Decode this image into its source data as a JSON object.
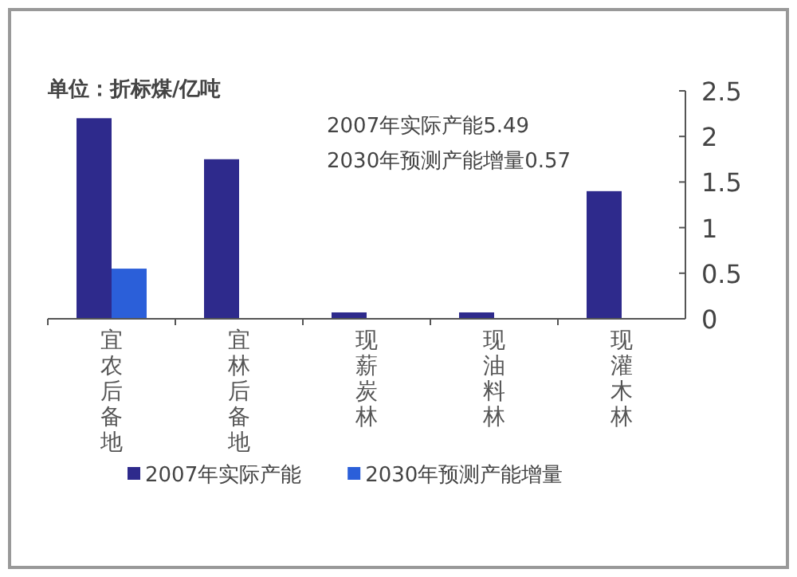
{
  "chart_data": {
    "type": "bar",
    "categories": [
      "宜农后备地",
      "宜林后备地",
      "现薪炭林",
      "现油料林",
      "现灌木林"
    ],
    "series": [
      {
        "name": "2007年实际产能",
        "color": "#2e2a8c",
        "values": [
          2.2,
          1.75,
          0.07,
          0.07,
          1.4
        ]
      },
      {
        "name": "2030年预测产能增量",
        "color": "#2b5fd9",
        "values": [
          0.55,
          0,
          0,
          0,
          0
        ]
      }
    ],
    "ylim": [
      0,
      2.5
    ],
    "yticks": [
      0,
      0.5,
      1,
      1.5,
      2,
      2.5
    ],
    "annotations": [
      "单位：折标煤/亿吨",
      "2007年实际产能5.49",
      "2030年预测产能增量0.57"
    ],
    "legend": "bottom"
  }
}
